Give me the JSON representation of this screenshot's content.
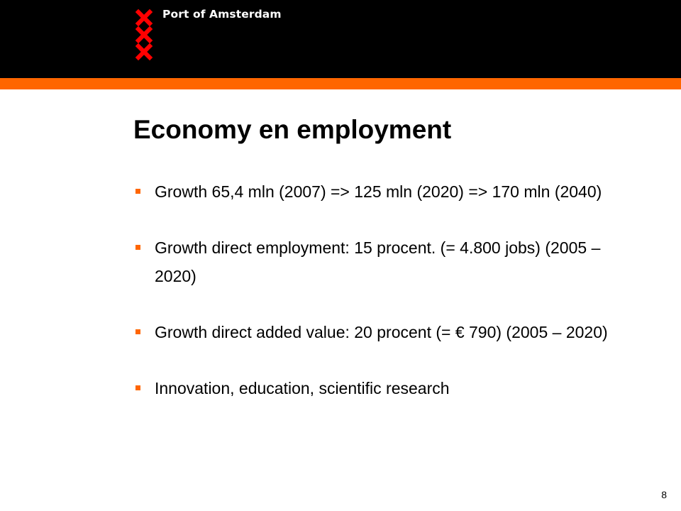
{
  "brand": {
    "logo_text": "Port of Amsterdam",
    "cross_color": "#ff0000",
    "accent_color": "#ff6600",
    "header_color": "#000000"
  },
  "slide": {
    "title": "Economy en employment",
    "bullets": [
      "Growth 65,4 mln (2007) => 125 mln (2020) => 170 mln (2040)",
      "Growth direct employment: 15 procent. (= 4.800 jobs) (2005 – 2020)",
      "Growth direct added value: 20 procent (= € 790) (2005 – 2020)",
      "Innovation, education, scientific research"
    ],
    "page_number": "8"
  }
}
